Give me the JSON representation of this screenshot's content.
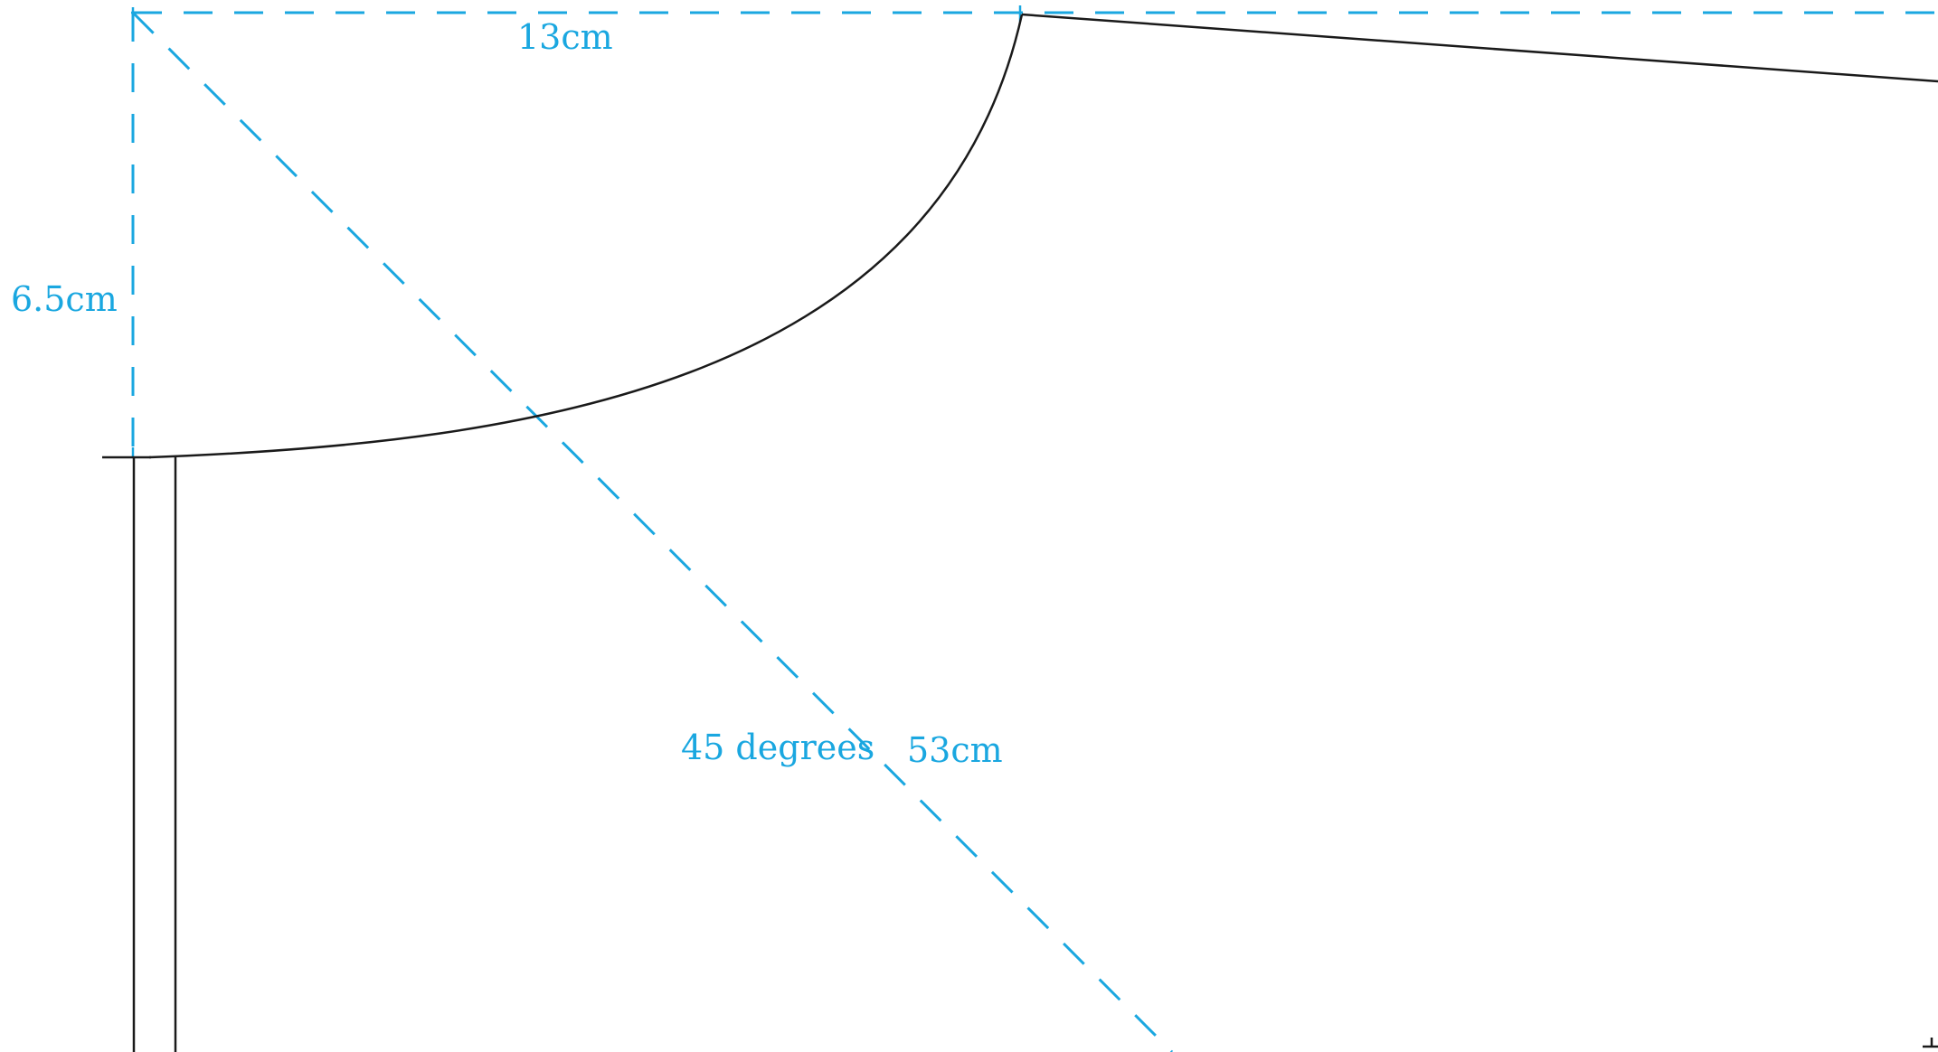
{
  "labels": {
    "top_measure": "13cm",
    "side_measure": "6.5cm",
    "angle": "45 degrees",
    "diagonal_measure": "53cm"
  },
  "colors": {
    "guide": "#1AA7E0",
    "outline": "#1a1a1a",
    "background": "#ffffff"
  }
}
